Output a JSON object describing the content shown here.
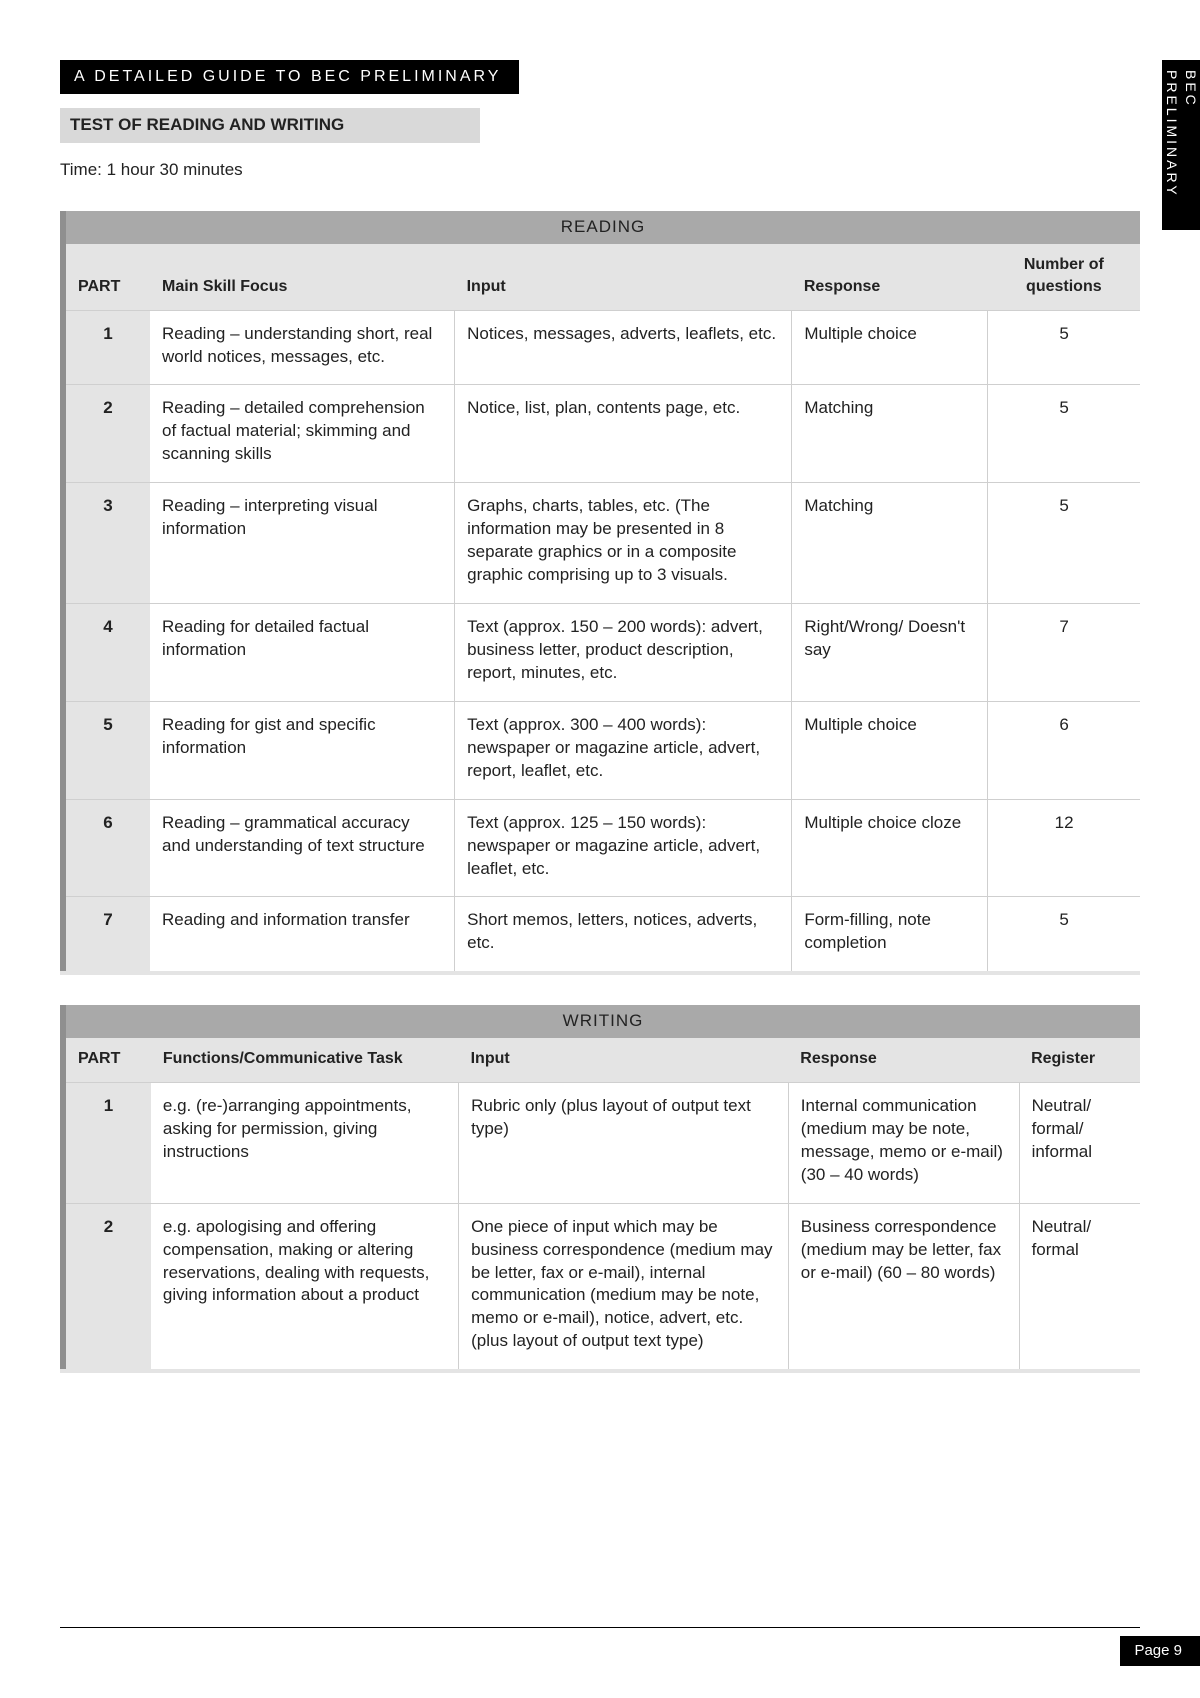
{
  "side_tab": "BEC PRELIMINARY",
  "header_black": "A DETAILED GUIDE TO BEC PRELIMINARY",
  "subheader": "TEST OF READING AND WRITING",
  "time_line": "Time: 1 hour 30 minutes",
  "reading": {
    "title": "READING",
    "columns": [
      "PART",
      "Main Skill Focus",
      "Input",
      "Response",
      "Number of questions"
    ],
    "rows": [
      {
        "part": "1",
        "skill": "Reading – understanding short, real world notices, messages, etc.",
        "input": "Notices, messages, adverts, leaflets, etc.",
        "response": "Multiple choice",
        "num": "5"
      },
      {
        "part": "2",
        "skill": "Reading – detailed comprehension of factual material; skimming and scanning skills",
        "input": "Notice, list, plan, contents page, etc.",
        "response": "Matching",
        "num": "5"
      },
      {
        "part": "3",
        "skill": "Reading – interpreting visual information",
        "input": "Graphs, charts, tables, etc. (The information may be presented in 8 separate graphics or in a composite graphic comprising up to 3 visuals.",
        "response": "Matching",
        "num": "5"
      },
      {
        "part": "4",
        "skill": "Reading for detailed factual information",
        "input": "Text (approx. 150 – 200 words): advert, business letter, product description, report, minutes, etc.",
        "response": "Right/Wrong/ Doesn't say",
        "num": "7"
      },
      {
        "part": "5",
        "skill": "Reading for gist and specific information",
        "input": "Text (approx. 300 – 400 words): newspaper or magazine article, advert, report, leaflet, etc.",
        "response": "Multiple choice",
        "num": "6"
      },
      {
        "part": "6",
        "skill": "Reading – grammatical accuracy and understanding of text structure",
        "input": "Text (approx. 125 – 150 words): newspaper or magazine article, advert, leaflet, etc.",
        "response": "Multiple choice cloze",
        "num": "12"
      },
      {
        "part": "7",
        "skill": "Reading and information transfer",
        "input": "Short memos, letters, notices, adverts, etc.",
        "response": "Form-filling, note completion",
        "num": "5"
      }
    ]
  },
  "writing": {
    "title": "WRITING",
    "columns": [
      "PART",
      "Functions/Communicative Task",
      "Input",
      "Response",
      "Register"
    ],
    "rows": [
      {
        "part": "1",
        "task": "e.g. (re-)arranging appointments, asking for permission, giving instructions",
        "input": "Rubric only (plus layout of output text type)",
        "response": "Internal communication (medium may be note, message, memo or e-mail) (30 – 40 words)",
        "register": "Neutral/ formal/ informal"
      },
      {
        "part": "2",
        "task": "e.g. apologising and offering compensation, making or altering reservations, dealing with requests, giving information about a product",
        "input": "One piece of input which may be business correspondence (medium may be letter, fax or e-mail), internal communication (medium may be note, memo or e-mail), notice, advert, etc. (plus layout of output text type)",
        "response": "Business corres­pondence (medium may be letter, fax or e-mail) (60 – 80 words)",
        "register": "Neutral/ formal"
      }
    ]
  },
  "page_number": "Page 9"
}
